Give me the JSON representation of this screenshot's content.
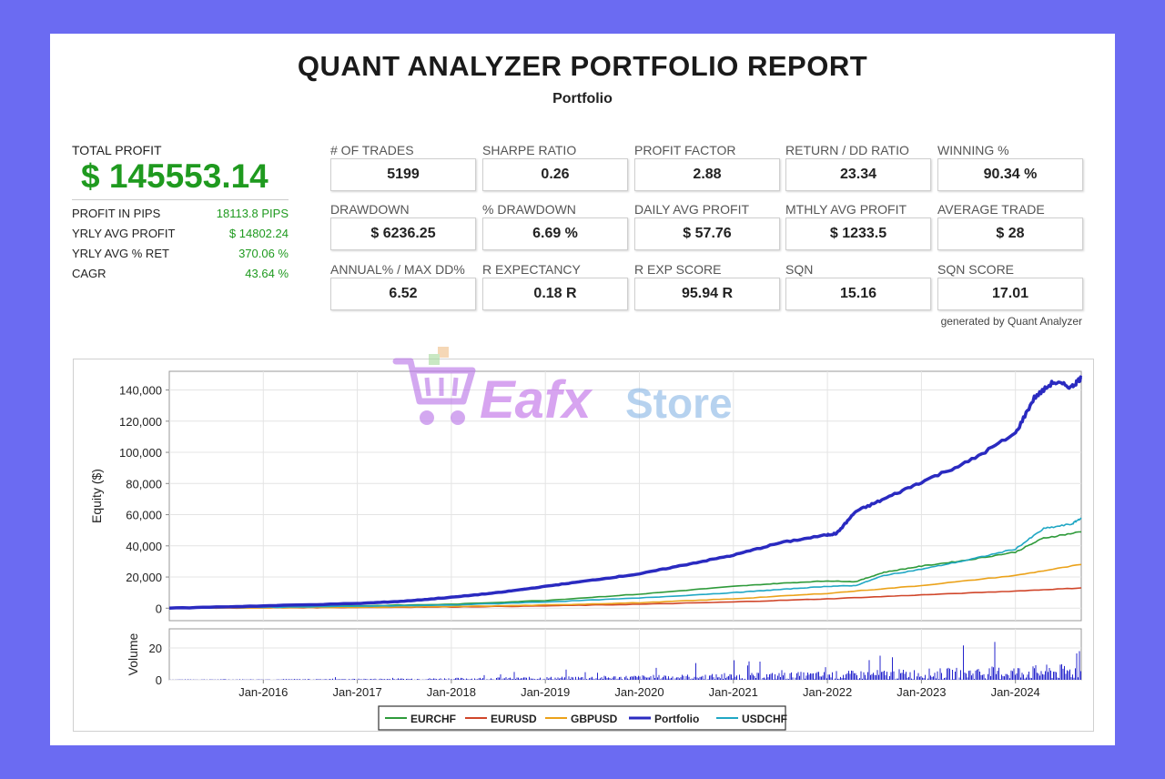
{
  "report": {
    "title": "QUANT ANALYZER PORTFOLIO REPORT",
    "subtitle": "Portfolio",
    "generated_by": "generated by Quant Analyzer"
  },
  "summary": {
    "total_profit_label": "TOTAL PROFIT",
    "total_profit_value": "$ 145553.14",
    "rows": [
      {
        "label": "PROFIT IN PIPS",
        "value": "18113.8 PIPS"
      },
      {
        "label": "YRLY AVG PROFIT",
        "value": "$ 14802.24"
      },
      {
        "label": "YRLY AVG % RET",
        "value": "370.06 %"
      },
      {
        "label": "CAGR",
        "value": "43.64 %"
      }
    ]
  },
  "metrics": [
    {
      "label": "# OF TRADES",
      "value": "5199"
    },
    {
      "label": "SHARPE RATIO",
      "value": "0.26"
    },
    {
      "label": "PROFIT FACTOR",
      "value": "2.88"
    },
    {
      "label": "RETURN / DD RATIO",
      "value": "23.34"
    },
    {
      "label": "WINNING %",
      "value": "90.34 %"
    },
    {
      "label": "DRAWDOWN",
      "value": "$ 6236.25"
    },
    {
      "label": "% DRAWDOWN",
      "value": "6.69 %"
    },
    {
      "label": "DAILY AVG PROFIT",
      "value": "$ 57.76"
    },
    {
      "label": "MTHLY AVG PROFIT",
      "value": "$ 1233.5"
    },
    {
      "label": "AVERAGE TRADE",
      "value": "$ 28"
    },
    {
      "label": "ANNUAL% / MAX DD%",
      "value": "6.52"
    },
    {
      "label": "R EXPECTANCY",
      "value": "0.18 R"
    },
    {
      "label": "R EXP SCORE",
      "value": "95.94 R"
    },
    {
      "label": "SQN",
      "value": "15.16"
    },
    {
      "label": "SQN SCORE",
      "value": "17.01"
    }
  ],
  "watermark": {
    "part1": "Eafx",
    "part2": "Store"
  },
  "colors": {
    "profit_green": "#1f9a1f",
    "EURCHF": "#2e9a3a",
    "EURUSD": "#d0462a",
    "GBPUSD": "#eba21a",
    "Portfolio": "#2a2ac0",
    "USDCHF": "#20a7c4",
    "volume": "#2424cc"
  },
  "chart_data": {
    "type": "line",
    "ylabel": "Equity ($)",
    "ylabel_volume": "Volume",
    "x_ticks": [
      "Jan-2016",
      "Jan-2017",
      "Jan-2018",
      "Jan-2019",
      "Jan-2020",
      "Jan-2021",
      "Jan-2022",
      "Jan-2023",
      "Jan-2024"
    ],
    "y_ticks": [
      "0",
      "20,000",
      "40,000",
      "60,000",
      "80,000",
      "100,000",
      "120,000",
      "140,000"
    ],
    "ylim": [
      -8000,
      152000
    ],
    "xlim": [
      2015.0,
      2024.7
    ],
    "volume_ticks": [
      "0",
      "20"
    ],
    "volume_ylim": [
      0,
      32
    ],
    "legend": [
      "EURCHF",
      "EURUSD",
      "GBPUSD",
      "Portfolio",
      "USDCHF"
    ],
    "legend_position": "bottom",
    "grid": true,
    "series": [
      {
        "name": "EURCHF",
        "x": [
          2015.0,
          2016.0,
          2017.0,
          2018.0,
          2019.0,
          2020.0,
          2021.0,
          2021.5,
          2022.0,
          2022.3,
          2022.6,
          2023.0,
          2023.5,
          2024.0,
          2024.3,
          2024.7
        ],
        "values": [
          0,
          1000,
          1500,
          2500,
          5000,
          9000,
          14000,
          16000,
          17500,
          17000,
          23000,
          27000,
          31000,
          36000,
          45000,
          49000
        ]
      },
      {
        "name": "EURUSD",
        "x": [
          2015.0,
          2016.0,
          2017.0,
          2018.0,
          2019.0,
          2020.0,
          2021.0,
          2022.0,
          2023.0,
          2024.0,
          2024.7
        ],
        "values": [
          0,
          200,
          500,
          800,
          1500,
          2500,
          4000,
          6000,
          8500,
          11000,
          13000
        ]
      },
      {
        "name": "GBPUSD",
        "x": [
          2015.0,
          2016.0,
          2017.0,
          2018.0,
          2019.0,
          2020.0,
          2021.0,
          2022.0,
          2023.0,
          2024.0,
          2024.7
        ],
        "values": [
          0,
          300,
          600,
          1000,
          2000,
          3500,
          6000,
          9500,
          14500,
          21000,
          28000
        ]
      },
      {
        "name": "Portfolio",
        "x": [
          2015.0,
          2016.0,
          2017.0,
          2017.5,
          2018.0,
          2018.5,
          2019.0,
          2019.5,
          2020.0,
          2020.5,
          2021.0,
          2021.5,
          2022.0,
          2022.1,
          2022.3,
          2022.6,
          2023.0,
          2023.5,
          2024.0,
          2024.2,
          2024.4,
          2024.6,
          2024.7
        ],
        "values": [
          0,
          1500,
          3000,
          4500,
          7000,
          10000,
          14000,
          18000,
          22000,
          28000,
          34000,
          42000,
          47000,
          48000,
          62000,
          70000,
          81000,
          94000,
          112000,
          135000,
          145000,
          142000,
          148000
        ]
      },
      {
        "name": "USDCHF",
        "x": [
          2015.0,
          2016.0,
          2017.0,
          2018.0,
          2019.0,
          2020.0,
          2021.0,
          2021.5,
          2022.0,
          2022.3,
          2022.6,
          2023.0,
          2023.5,
          2024.0,
          2024.3,
          2024.6,
          2024.7
        ],
        "values": [
          0,
          600,
          1200,
          2000,
          4000,
          6500,
          10000,
          12000,
          14000,
          14500,
          21000,
          25000,
          31000,
          38000,
          51000,
          54000,
          58000
        ]
      }
    ]
  }
}
